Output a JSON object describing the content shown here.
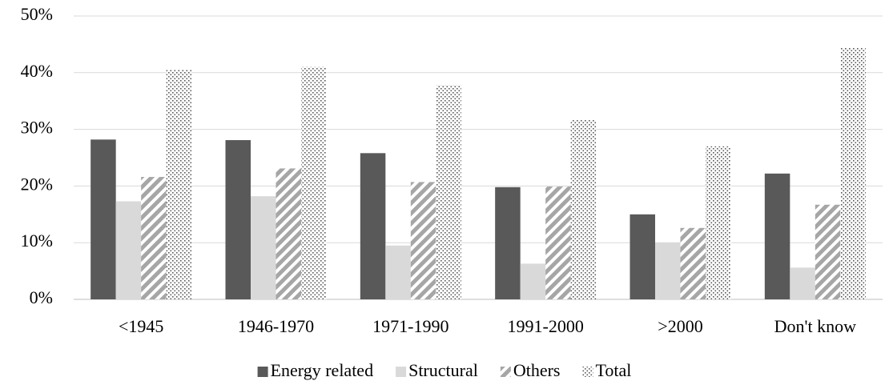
{
  "chart_data": {
    "type": "bar",
    "categories": [
      "<1945",
      "1946-1970",
      "1971-1990",
      "1991-2000",
      ">2000",
      "Don't know"
    ],
    "series": [
      {
        "name": "Energy related",
        "color": "#595959",
        "pattern": "solid",
        "values": [
          28.2,
          28.1,
          25.8,
          19.8,
          15.0,
          22.2
        ]
      },
      {
        "name": "Structural",
        "color": "#d9d9d9",
        "pattern": "solid",
        "values": [
          17.3,
          18.2,
          9.5,
          6.3,
          10.0,
          5.6
        ]
      },
      {
        "name": "Others",
        "color": "#a6a6a6",
        "pattern": "hatch",
        "values": [
          21.6,
          23.1,
          20.7,
          19.9,
          12.6,
          16.7
        ]
      },
      {
        "name": "Total",
        "color": "#595959",
        "pattern": "dots",
        "values": [
          40.5,
          41.0,
          37.8,
          31.7,
          27.0,
          44.4
        ]
      }
    ],
    "ylim": [
      0,
      50
    ],
    "yticks": [
      {
        "value": 0,
        "label": "0%"
      },
      {
        "value": 10,
        "label": "10%"
      },
      {
        "value": 20,
        "label": "20%"
      },
      {
        "value": 30,
        "label": "30%"
      },
      {
        "value": 40,
        "label": "40%"
      },
      {
        "value": 50,
        "label": "50%"
      }
    ],
    "grid": true,
    "legend": "bottom"
  }
}
